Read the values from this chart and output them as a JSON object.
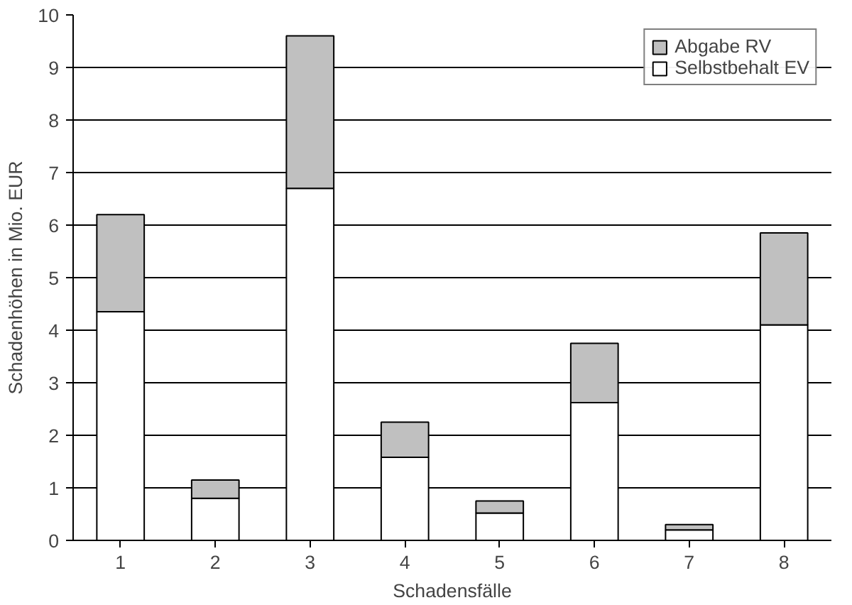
{
  "chart_data": {
    "type": "bar",
    "stacked": true,
    "xlabel": "Schadensfälle",
    "ylabel": "Schadenhöhen in Mio. EUR",
    "categories": [
      "1",
      "2",
      "3",
      "4",
      "5",
      "6",
      "7",
      "8"
    ],
    "series": [
      {
        "name": "Selbstbehalt EV",
        "color": "#ffffff",
        "values": [
          4.35,
          0.8,
          6.7,
          1.58,
          0.52,
          2.62,
          0.2,
          4.1
        ]
      },
      {
        "name": "Abgabe RV",
        "color": "#c0c0c0",
        "values": [
          1.85,
          0.35,
          2.9,
          0.67,
          0.23,
          1.13,
          0.1,
          1.75
        ]
      }
    ],
    "ylim": [
      0,
      10
    ],
    "yticks": [
      0,
      1,
      2,
      3,
      4,
      5,
      6,
      7,
      8,
      9,
      10
    ],
    "grid": "y",
    "legend": "top right"
  }
}
